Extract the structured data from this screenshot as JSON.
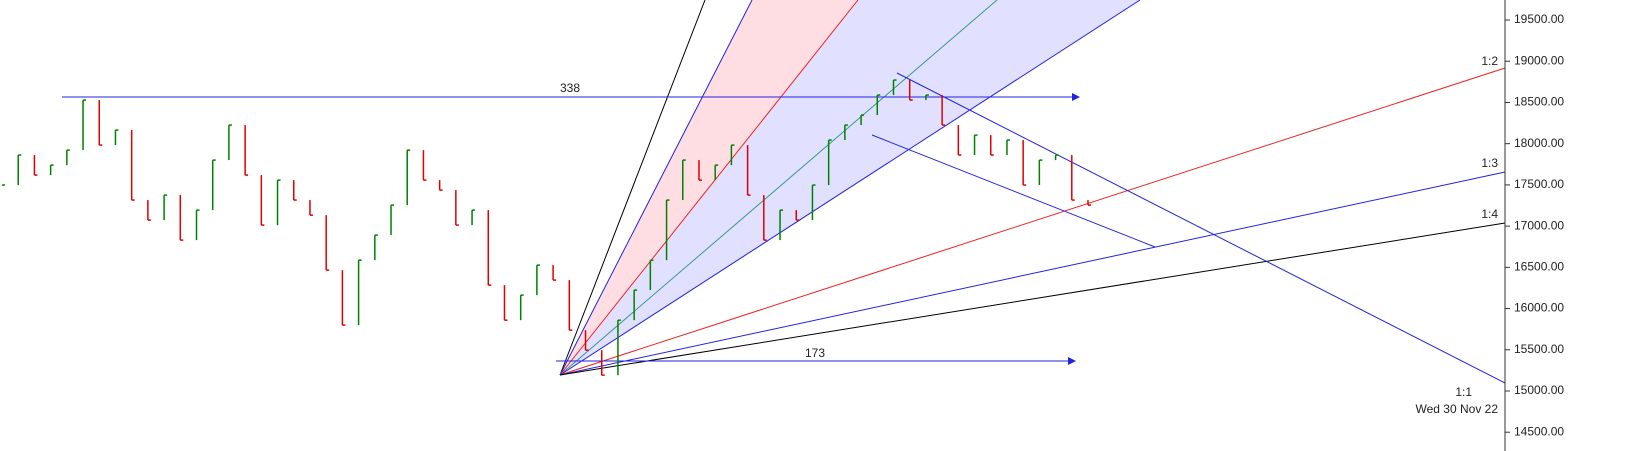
{
  "chart_data": {
    "type": "price-bars",
    "values": [
      17498,
      17862,
      17619,
      17740,
      17922,
      18529,
      17983,
      18165,
      17316,
      17073,
      17376,
      16830,
      17194,
      17801,
      18226,
      17619,
      17012,
      17558,
      17316,
      17133,
      16466,
      15799,
      16587,
      16891,
      17255,
      17922,
      17558,
      17437,
      17012,
      17194,
      16284,
      15859,
      16163,
      16527,
      16345,
      15738,
      15495,
      15192,
      15859,
      16224,
      16587,
      17316,
      17801,
      17558,
      17740,
      17983,
      17376,
      16830,
      17194,
      17073,
      17498,
      18044,
      18226,
      18347,
      18590,
      18772,
      18529,
      18590,
      18226,
      17862,
      18104,
      17862,
      18044,
      17498,
      17801,
      17862,
      17316,
      17255
    ],
    "up_color": "#008000",
    "down_color": "#e00000",
    "ylim": [
      14272,
      19743
    ],
    "yticks": [
      {
        "value": 14500,
        "label": "14500.00"
      },
      {
        "value": 15000,
        "label": "15000.00"
      },
      {
        "value": 15500,
        "label": "15500.00"
      },
      {
        "value": 16000,
        "label": "16000.00"
      },
      {
        "value": 16500,
        "label": "16500.00"
      },
      {
        "value": 17000,
        "label": "17000.00"
      },
      {
        "value": 17500,
        "label": "17500.00"
      },
      {
        "value": 18000,
        "label": "18000.00"
      },
      {
        "value": 18500,
        "label": "18500.00"
      },
      {
        "value": 19000,
        "label": "19000.00"
      },
      {
        "value": 19500,
        "label": "19500.00"
      }
    ],
    "annotations": {
      "span_top": "338",
      "span_bottom": "173",
      "fan_1_2": "1:2",
      "fan_1_3": "1:3",
      "fan_1_4": "1:4",
      "fan_1_1": "1:1",
      "date": "Wed 30 Nov 22"
    }
  }
}
